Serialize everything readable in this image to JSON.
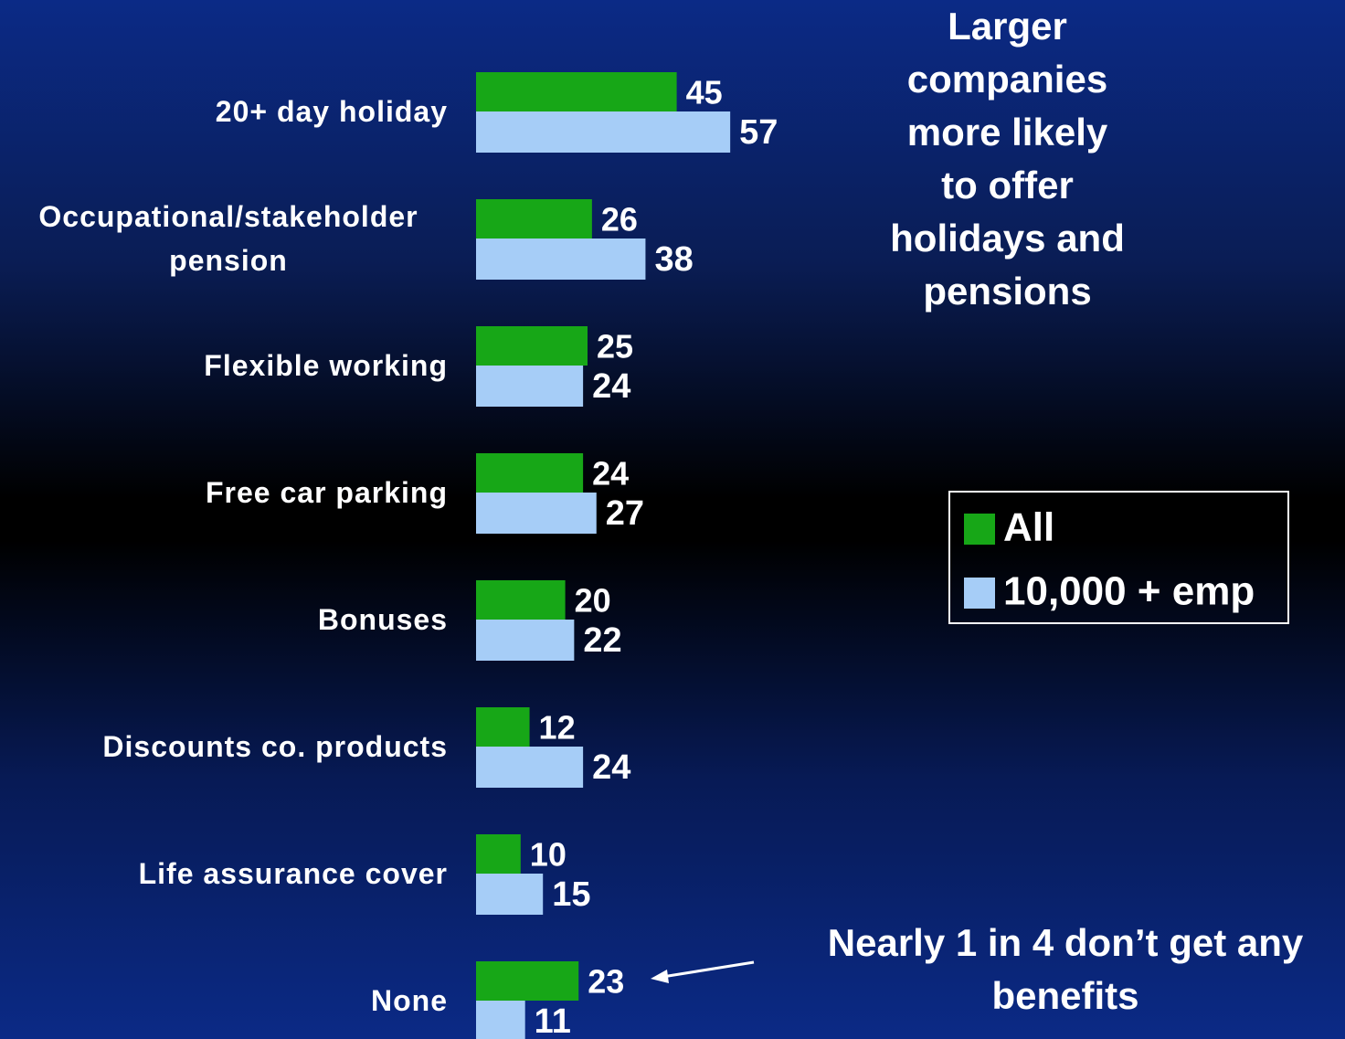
{
  "chart_data": {
    "type": "bar",
    "orientation": "horizontal",
    "categories": [
      "20+ day holiday",
      "Occupational/stakeholder pension",
      "Flexible working",
      "Free car parking",
      "Bonuses",
      "Discounts co. products",
      "Life assurance cover",
      "None"
    ],
    "series": [
      {
        "name": "All",
        "color": "#17a717",
        "values": [
          45,
          26,
          25,
          24,
          20,
          12,
          10,
          23
        ]
      },
      {
        "name": "10,000 + emp",
        "color": "#a6cdf7",
        "values": [
          57,
          38,
          24,
          27,
          22,
          24,
          15,
          11
        ]
      }
    ],
    "legend": "right",
    "annotations": [
      "Larger companies more likely to offer holidays and pensions",
      "Nearly 1 in 4 don’t get any benefits"
    ]
  }
}
